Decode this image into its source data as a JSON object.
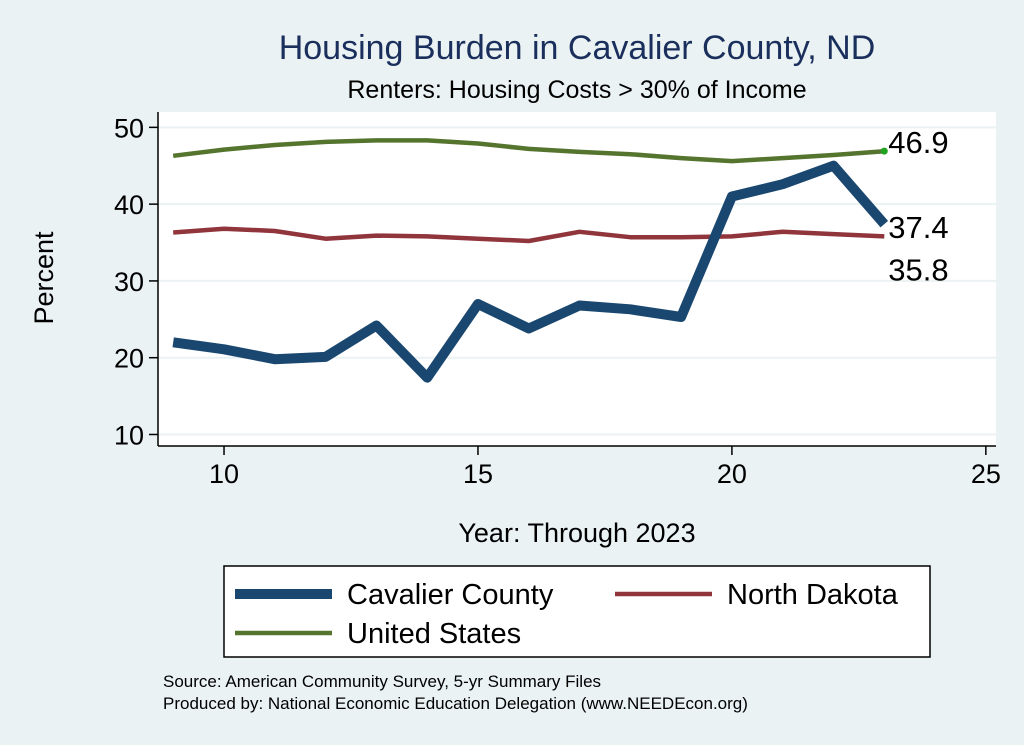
{
  "chart_data": {
    "type": "line",
    "title": "Housing Burden in Cavalier County, ND",
    "subtitle": "Renters: Housing Costs > 30% of Income",
    "xlabel": "Year: Through 2023",
    "ylabel": "Percent",
    "xlim": [
      8.7,
      25.2
    ],
    "ylim": [
      8.5,
      52
    ],
    "x_ticks": [
      10,
      15,
      20,
      25
    ],
    "y_ticks": [
      10,
      20,
      30,
      40,
      50
    ],
    "grid": true,
    "x": [
      9,
      10,
      11,
      12,
      13,
      14,
      15,
      16,
      17,
      18,
      19,
      20,
      21,
      22,
      23
    ],
    "series": [
      {
        "name": "Cavalier County",
        "color": "#1a476f",
        "values": [
          22.0,
          21.1,
          19.8,
          20.1,
          24.2,
          17.4,
          27.0,
          23.8,
          26.8,
          26.3,
          25.3,
          41.0,
          42.6,
          45.0,
          37.4
        ],
        "end_label": "37.4"
      },
      {
        "name": "North Dakota",
        "color": "#90353b",
        "values": [
          36.3,
          36.8,
          36.5,
          35.5,
          35.9,
          35.8,
          35.5,
          35.2,
          36.4,
          35.7,
          35.7,
          35.8,
          36.4,
          36.1,
          35.8
        ],
        "end_label": "35.8"
      },
      {
        "name": "United States",
        "color": "#55752f",
        "values": [
          46.3,
          47.1,
          47.7,
          48.1,
          48.3,
          48.3,
          47.9,
          47.2,
          46.8,
          46.5,
          46.0,
          45.6,
          46.0,
          46.4,
          46.9
        ],
        "end_label": "46.9"
      }
    ],
    "legend_position": "bottom"
  },
  "notes": {
    "source": "Source: American Community Survey, 5-yr Summary Files",
    "produced_by": "Produced by: National Economic Education Delegation (www.NEEDEcon.org)"
  }
}
